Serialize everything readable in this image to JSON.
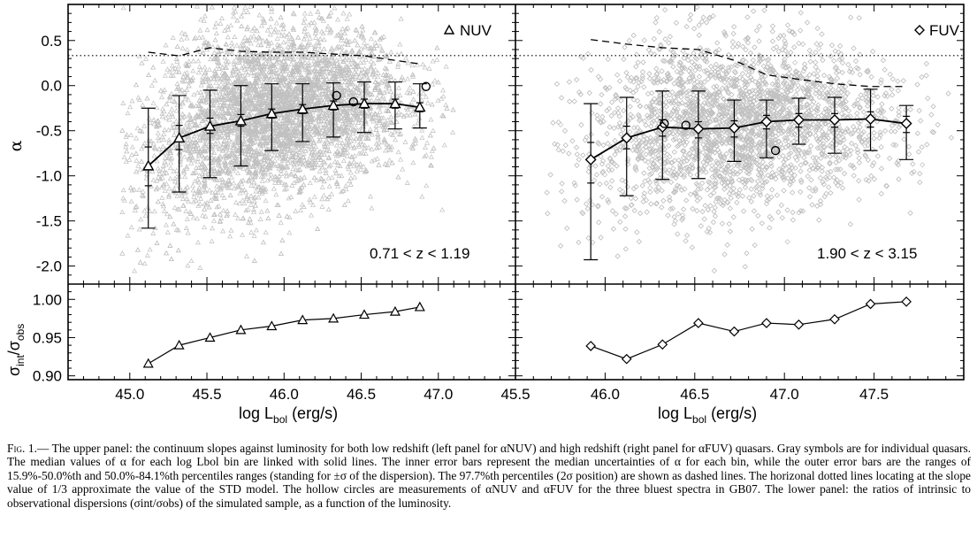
{
  "chart_data": [
    {
      "panel": "upper-left",
      "type": "scatter",
      "legend": "NUV",
      "legend_marker": "triangle",
      "annotation": "0.71 < z < 1.19",
      "ylabel": "α",
      "xlim": [
        44.6,
        47.5
      ],
      "ylim": [
        -2.2,
        0.9
      ],
      "yticks": [
        "0.5",
        "0.0",
        "-0.5",
        "-1.0",
        "-1.5",
        "-2.0"
      ],
      "reference_line_y": 0.333,
      "median": {
        "x": [
          45.12,
          45.32,
          45.52,
          45.72,
          45.92,
          46.12,
          46.32,
          46.52,
          46.72,
          46.88
        ],
        "y": [
          -0.89,
          -0.58,
          -0.45,
          -0.39,
          -0.31,
          -0.26,
          -0.22,
          -0.2,
          -0.2,
          -0.24
        ],
        "inner_err": [
          [
            -1.11,
            -0.68
          ],
          [
            -0.71,
            -0.44
          ],
          [
            -0.53,
            -0.36
          ],
          [
            -0.45,
            -0.32
          ],
          [
            -0.36,
            -0.26
          ],
          [
            -0.31,
            -0.21
          ],
          [
            -0.27,
            -0.17
          ],
          [
            -0.25,
            -0.15
          ],
          [
            -0.25,
            -0.15
          ],
          [
            -0.29,
            -0.19
          ]
        ],
        "outer_err": [
          [
            -1.58,
            -0.25
          ],
          [
            -1.18,
            -0.11
          ],
          [
            -1.02,
            -0.05
          ],
          [
            -0.89,
            0.0
          ],
          [
            -0.72,
            0.02
          ],
          [
            -0.62,
            0.02
          ],
          [
            -0.57,
            0.03
          ],
          [
            -0.52,
            0.04
          ],
          [
            -0.48,
            0.04
          ],
          [
            -0.47,
            0.02
          ]
        ]
      },
      "dashed_97_7": {
        "x": [
          45.12,
          45.32,
          45.52,
          45.72,
          45.92,
          46.12,
          46.32,
          46.52,
          46.72,
          46.88
        ],
        "y": [
          0.37,
          0.33,
          0.42,
          0.38,
          0.37,
          0.37,
          0.35,
          0.33,
          0.28,
          0.24
        ]
      },
      "gb07_circles": {
        "x": [
          46.34,
          46.45,
          46.92
        ],
        "y": [
          -0.11,
          -0.18,
          -0.01
        ]
      }
    },
    {
      "panel": "upper-right",
      "type": "scatter",
      "legend": "FUV",
      "legend_marker": "diamond",
      "annotation": "1.90 < z < 3.15",
      "xlim": [
        45.5,
        48.0
      ],
      "ylim": [
        -2.2,
        0.9
      ],
      "reference_line_y": 0.333,
      "median": {
        "x": [
          45.92,
          46.12,
          46.32,
          46.52,
          46.72,
          46.9,
          47.08,
          47.28,
          47.48,
          47.68
        ],
        "y": [
          -0.82,
          -0.58,
          -0.46,
          -0.48,
          -0.47,
          -0.4,
          -0.38,
          -0.38,
          -0.37,
          -0.42
        ],
        "inner_err": [
          [
            -1.08,
            -0.63
          ],
          [
            -0.7,
            -0.45
          ],
          [
            -0.56,
            -0.38
          ],
          [
            -0.58,
            -0.4
          ],
          [
            -0.57,
            -0.39
          ],
          [
            -0.48,
            -0.33
          ],
          [
            -0.46,
            -0.31
          ],
          [
            -0.46,
            -0.31
          ],
          [
            -0.46,
            -0.29
          ],
          [
            -0.52,
            -0.34
          ]
        ],
        "outer_err": [
          [
            -1.93,
            -0.2
          ],
          [
            -1.22,
            -0.13
          ],
          [
            -1.04,
            -0.06
          ],
          [
            -1.03,
            -0.06
          ],
          [
            -0.84,
            -0.16
          ],
          [
            -0.8,
            -0.16
          ],
          [
            -0.65,
            -0.14
          ],
          [
            -0.75,
            -0.13
          ],
          [
            -0.72,
            -0.04
          ],
          [
            -0.82,
            -0.22
          ]
        ]
      },
      "dashed_97_7": {
        "x": [
          45.92,
          46.12,
          46.32,
          46.52,
          46.72,
          46.9,
          47.08,
          47.28,
          47.48,
          47.68
        ],
        "y": [
          0.51,
          0.46,
          0.42,
          0.4,
          0.28,
          0.12,
          0.07,
          0.02,
          -0.01,
          -0.01
        ]
      },
      "gb07_circles": {
        "x": [
          46.33,
          46.45,
          46.95
        ],
        "y": [
          -0.42,
          -0.44,
          -0.72
        ]
      }
    },
    {
      "panel": "lower-left",
      "type": "line",
      "ylabel": "σint/σobs",
      "ylabel_main": "σ",
      "ylabel_sub1": "int",
      "ylabel_mid": "/σ",
      "ylabel_sub2": "obs",
      "marker": "triangle",
      "ylim": [
        0.895,
        1.02
      ],
      "yticks": [
        "1.00",
        "0.95",
        "0.90"
      ],
      "x": [
        45.12,
        45.32,
        45.52,
        45.72,
        45.92,
        46.12,
        46.32,
        46.52,
        46.72,
        46.88
      ],
      "y": [
        0.916,
        0.94,
        0.95,
        0.96,
        0.965,
        0.973,
        0.975,
        0.98,
        0.984,
        0.99
      ]
    },
    {
      "panel": "lower-right",
      "type": "line",
      "marker": "diamond",
      "ylim": [
        0.895,
        1.02
      ],
      "x": [
        45.92,
        46.12,
        46.32,
        46.52,
        46.72,
        46.9,
        47.08,
        47.28,
        47.48,
        47.68
      ],
      "y": [
        0.939,
        0.922,
        0.941,
        0.969,
        0.958,
        0.969,
        0.967,
        0.974,
        0.994,
        0.997
      ]
    }
  ],
  "xaxis": {
    "left_ticks": [
      "45.0",
      "45.5",
      "46.0",
      "46.5",
      "47.0"
    ],
    "shared_tick": "45.5",
    "right_ticks": [
      "46.0",
      "46.5",
      "47.0",
      "47.5"
    ],
    "label_main": "log L",
    "label_sub": "bol",
    "label_unit": " (erg/s)"
  },
  "colors": {
    "scatter": "#c0c0c0",
    "lines": "#000000",
    "background": "#ffffff"
  },
  "caption": {
    "fig_label": "Fig. 1.—",
    "text": "The upper panel: the continuum slopes against luminosity for both low redshift (left panel for αNUV) and high redshift (right panel for αFUV) quasars. Gray symbols are for individual quasars. The median values of α for each log Lbol bin are linked with solid lines. The inner error bars represent the median uncertainties of α for each bin, while the outer error bars are the ranges of 15.9%-50.0%th and 50.0%-84.1%th percentiles ranges (standing for ±σ of the dispersion). The 97.7%th percentiles (2σ position) are shown as dashed lines. The horizonal dotted lines locating at the slope value of 1/3 approximate the value of the STD model. The hollow circles are measurements of αNUV and αFUV for the three bluest spectra in GB07. The lower panel: the ratios of intrinsic to observational dispersions (σint/σobs) of the simulated sample, as a function of the luminosity."
  }
}
